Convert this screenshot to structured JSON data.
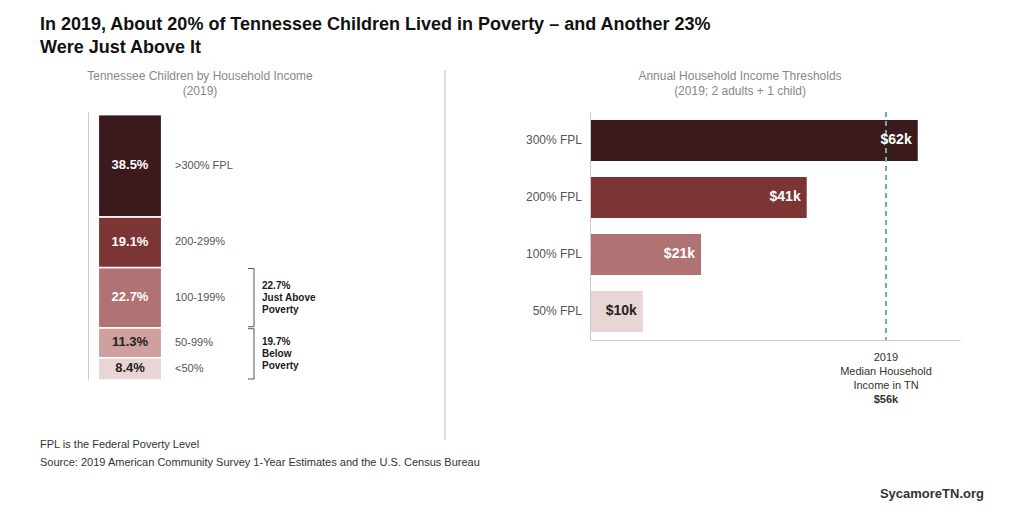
{
  "title": "In 2019, About 20% of Tennessee Children Lived in Poverty – and Another 23%\nWere Just Above It",
  "chart_data": [
    {
      "type": "bar",
      "stacked": true,
      "subtitle": "Tennessee Children by Household Income\n(2019)",
      "categories": [
        null
      ],
      "series": [
        {
          "name": "<50%",
          "color": "#ead5d5",
          "values": [
            8.4
          ],
          "value_labels": [
            "8.4%"
          ]
        },
        {
          "name": "50-99%",
          "color": "#cfa0a0",
          "values": [
            11.3
          ],
          "value_labels": [
            "11.3%"
          ]
        },
        {
          "name": "100-199%",
          "color": "#b07272",
          "values": [
            22.7
          ],
          "value_labels": [
            "22.7%"
          ]
        },
        {
          "name": "200-299%",
          "color": "#7b3535",
          "values": [
            19.1
          ],
          "value_labels": [
            "19.1%"
          ]
        },
        {
          "name": ">300% FPL",
          "color": "#3a1a1a",
          "values": [
            38.5
          ],
          "value_labels": [
            "38.5%"
          ]
        }
      ],
      "ylim": [
        0,
        101
      ],
      "yticks": [],
      "data_labels": true,
      "tick_labels": false,
      "grid": false,
      "annotations": [
        {
          "text": "22.7%\nJust Above\nPoverty",
          "series": [
            "100-199%"
          ]
        },
        {
          "text": "19.7%\nBelow\nPoverty",
          "series": [
            "<50%",
            "50-99%"
          ]
        }
      ]
    },
    {
      "type": "bar",
      "orientation": "horizontal",
      "subtitle": "Annual Household Income Thresholds\n(2019; 2 adults + 1 child)",
      "categories": [
        "300% FPL",
        "200% FPL",
        "100% FPL",
        "50% FPL"
      ],
      "values": [
        62,
        41,
        21,
        10
      ],
      "value_labels": [
        "$62k",
        "$41k",
        "$21k",
        "$10k"
      ],
      "colors": [
        "#3a1a1a",
        "#7b3535",
        "#b07272",
        "#ead5d5"
      ],
      "xlim": [
        0,
        70
      ],
      "xticks": [],
      "data_labels": true,
      "tick_labels": "y",
      "grid": false,
      "annotations": [
        {
          "text": "2019\nMedian Household\nIncome in TN\n$56k",
          "value": 56,
          "color": "#6aacb8",
          "line_style": "dashed"
        }
      ]
    }
  ],
  "footnotes": [
    "FPL is the Federal Poverty Level",
    "Source: 2019 American Community Survey 1-Year Estimates and the U.S. Census Bureau"
  ],
  "attribution": "SycamoreTN.org"
}
